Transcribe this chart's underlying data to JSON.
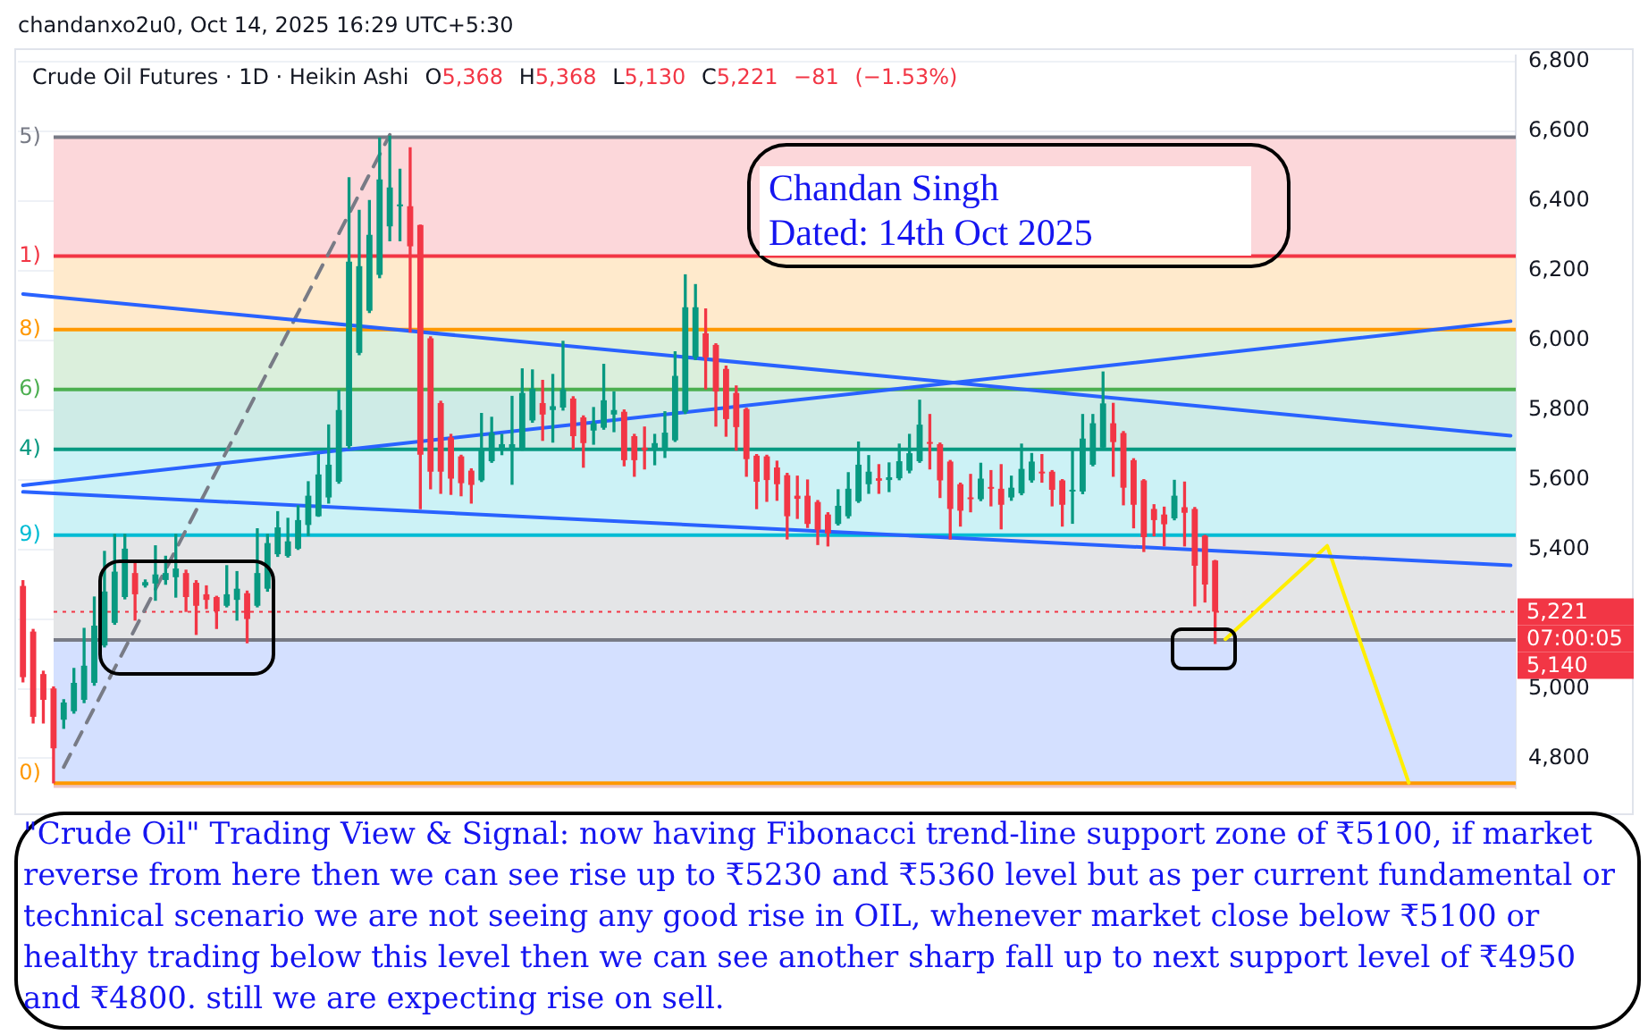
{
  "chart_data": {
    "type": "candlestick",
    "title": "Crude Oil Futures · 1D · Heikin Ashi",
    "subtitle": "O5,368 H5,368 L5,130 C5,221 −81 (−1.53%)",
    "categories": [
      null,
      null,
      null,
      null,
      null,
      null,
      null,
      null,
      null,
      null,
      null,
      null,
      null,
      null,
      null,
      null,
      null,
      null,
      null,
      null,
      null,
      null,
      null,
      null,
      null,
      null,
      null,
      null,
      null,
      null,
      null,
      null,
      null,
      null,
      null,
      null,
      null,
      null,
      null,
      null,
      null,
      null,
      null,
      null,
      null,
      null,
      null,
      null,
      null,
      null,
      null,
      null,
      null,
      null,
      null,
      null,
      null,
      null,
      null,
      null,
      null,
      null,
      null,
      null,
      null,
      null,
      null,
      null,
      null,
      null,
      null,
      null,
      null,
      null,
      null,
      null,
      null,
      null,
      null,
      null,
      null,
      null,
      null,
      null,
      null,
      null,
      null,
      null,
      null,
      null,
      null,
      null,
      null,
      null,
      null,
      null,
      null,
      null,
      null,
      null,
      null,
      null,
      null,
      null,
      null,
      null,
      null,
      null,
      null,
      null,
      null,
      null,
      null,
      null,
      null,
      null,
      null,
      null,
      null,
      null,
      null,
      null,
      null,
      null,
      null,
      null,
      null,
      null,
      null,
      null,
      null,
      null,
      null,
      null,
      null,
      null,
      null,
      null,
      null,
      null,
      null,
      null,
      null,
      null,
      null,
      null,
      null
    ],
    "ohlc": [
      [
        5295,
        5310,
        5020,
        5033
      ],
      [
        5164,
        5170,
        4902,
        4919
      ],
      [
        5042,
        5050,
        4902,
        4968
      ],
      [
        5001,
        5005,
        4730,
        4829
      ],
      [
        4911,
        4968,
        4886,
        4960
      ],
      [
        4935,
        5058,
        4930,
        5017
      ],
      [
        4968,
        5173,
        4960,
        5066
      ],
      [
        5017,
        5263,
        5010,
        5181
      ],
      [
        5124,
        5394,
        5120,
        5279
      ],
      [
        5189,
        5443,
        5185,
        5336
      ],
      [
        5263,
        5443,
        5258,
        5402
      ],
      [
        5332,
        5361,
        5197,
        5271
      ],
      [
        5296,
        5312,
        5292,
        5306
      ],
      [
        5302,
        5410,
        5254,
        5328
      ],
      [
        5312,
        5380,
        5300,
        5332
      ],
      [
        5320,
        5443,
        5263,
        5345
      ],
      [
        5332,
        5340,
        5222,
        5263
      ],
      [
        5304,
        5310,
        5156,
        5238
      ],
      [
        5271,
        5295,
        5230,
        5255
      ],
      [
        5263,
        5265,
        5173,
        5222
      ],
      [
        5238,
        5353,
        5235,
        5271
      ],
      [
        5255,
        5336,
        5197,
        5287
      ],
      [
        5274,
        5280,
        5132,
        5200
      ],
      [
        5238,
        5459,
        5235,
        5332
      ],
      [
        5287,
        5443,
        5280,
        5418
      ],
      [
        5386,
        5508,
        5380,
        5463
      ],
      [
        5381,
        5489,
        5378,
        5423
      ],
      [
        5402,
        5525,
        5400,
        5484
      ],
      [
        5470,
        5594,
        5440,
        5554
      ],
      [
        5495,
        5672,
        5495,
        5615
      ],
      [
        5549,
        5757,
        5533,
        5643
      ],
      [
        5594,
        5856,
        5590,
        5800
      ],
      [
        5697,
        6467,
        5690,
        6226
      ],
      [
        5964,
        6373,
        5959,
        6213
      ],
      [
        6085,
        6401,
        6080,
        6303
      ],
      [
        6188,
        6581,
        6180,
        6462
      ],
      [
        6327,
        6586,
        6286,
        6439
      ],
      [
        6385,
        6491,
        6286,
        6390
      ],
      [
        6385,
        6553,
        6024,
        6270
      ],
      [
        6331,
        6331,
        5517,
        5672
      ],
      [
        6006,
        6010,
        5574,
        5623
      ],
      [
        5820,
        5825,
        5561,
        5623
      ],
      [
        5721,
        5730,
        5558,
        5603
      ],
      [
        5667,
        5670,
        5554,
        5590
      ],
      [
        5626,
        5631,
        5533,
        5585
      ],
      [
        5598,
        5790,
        5595,
        5685
      ],
      [
        5653,
        5779,
        5650,
        5734
      ],
      [
        5685,
        5730,
        5672,
        5702
      ],
      [
        5689,
        5839,
        5587,
        5702
      ],
      [
        5689,
        5918,
        5685,
        5849
      ],
      [
        5770,
        5915,
        5765,
        5861
      ],
      [
        5820,
        5885,
        5713,
        5787
      ],
      [
        5800,
        5902,
        5708,
        5811
      ],
      [
        5807,
        5997,
        5800,
        5859
      ],
      [
        5833,
        5838,
        5689,
        5725
      ],
      [
        5779,
        5783,
        5636,
        5705
      ],
      [
        5741,
        5807,
        5702,
        5762
      ],
      [
        5749,
        5931,
        5745,
        5828
      ],
      [
        5787,
        5852,
        5738,
        5800
      ],
      [
        5795,
        5800,
        5640,
        5656
      ],
      [
        5725,
        5730,
        5610,
        5656
      ],
      [
        5692,
        5751,
        5631,
        5685
      ],
      [
        5685,
        5730,
        5643,
        5705
      ],
      [
        5689,
        5795,
        5664,
        5735
      ],
      [
        5713,
        5967,
        5710,
        5898
      ],
      [
        5795,
        6188,
        5790,
        6095
      ],
      [
        5951,
        6160,
        5945,
        6095
      ],
      [
        6020,
        6090,
        5861,
        5951
      ],
      [
        5987,
        5990,
        5754,
        5853
      ],
      [
        5918,
        5926,
        5725,
        5774
      ],
      [
        5849,
        5869,
        5685,
        5751
      ],
      [
        5803,
        5805,
        5610,
        5659
      ],
      [
        5669,
        5672,
        5517,
        5594
      ],
      [
        5667,
        5670,
        5538,
        5599
      ],
      [
        5635,
        5653,
        5541,
        5587
      ],
      [
        5613,
        5618,
        5430,
        5495
      ],
      [
        5554,
        5610,
        5489,
        5545
      ],
      [
        5554,
        5599,
        5463,
        5473
      ],
      [
        5536,
        5540,
        5414,
        5456
      ],
      [
        5500,
        5505,
        5410,
        5446
      ],
      [
        5473,
        5571,
        5470,
        5525
      ],
      [
        5495,
        5620,
        5490,
        5574
      ],
      [
        5538,
        5708,
        5535,
        5643
      ],
      [
        5587,
        5669,
        5561,
        5623
      ],
      [
        5604,
        5643,
        5561,
        5597
      ],
      [
        5599,
        5648,
        5566,
        5607
      ],
      [
        5604,
        5702,
        5600,
        5653
      ],
      [
        5626,
        5730,
        5620,
        5676
      ],
      [
        5653,
        5828,
        5650,
        5758
      ],
      [
        5708,
        5787,
        5631,
        5703
      ],
      [
        5702,
        5705,
        5549,
        5598
      ],
      [
        5652,
        5655,
        5430,
        5516
      ],
      [
        5587,
        5590,
        5467,
        5511
      ],
      [
        5549,
        5615,
        5508,
        5544
      ],
      [
        5544,
        5647,
        5540,
        5603
      ],
      [
        5577,
        5626,
        5525,
        5574
      ],
      [
        5574,
        5643,
        5459,
        5528
      ],
      [
        5549,
        5610,
        5541,
        5577
      ],
      [
        5561,
        5702,
        5557,
        5631
      ],
      [
        5598,
        5675,
        5593,
        5652
      ],
      [
        5623,
        5672,
        5593,
        5618
      ],
      [
        5623,
        5626,
        5525,
        5571
      ],
      [
        5598,
        5600,
        5467,
        5528
      ],
      [
        5566,
        5685,
        5475,
        5571
      ],
      [
        5566,
        5787,
        5560,
        5718
      ],
      [
        5643,
        5787,
        5640,
        5762
      ],
      [
        5692,
        5909,
        5690,
        5819
      ],
      [
        5762,
        5819,
        5610,
        5708
      ],
      [
        5734,
        5738,
        5528,
        5577
      ],
      [
        5656,
        5660,
        5462,
        5528
      ],
      [
        5598,
        5600,
        5394,
        5435
      ],
      [
        5516,
        5528,
        5439,
        5484
      ],
      [
        5500,
        5521,
        5410,
        5472
      ],
      [
        5489,
        5598,
        5485,
        5554
      ],
      [
        5521,
        5593,
        5410,
        5505
      ],
      [
        5516,
        5520,
        5238,
        5353
      ],
      [
        5439,
        5440,
        5249,
        5299
      ],
      [
        5368,
        5368,
        5130,
        5221
      ],
      null,
      null,
      null,
      null,
      null,
      null,
      null,
      null,
      null,
      null,
      null,
      null,
      null,
      null,
      null,
      null,
      null,
      null,
      null,
      null,
      null,
      null,
      null,
      null,
      null,
      null,
      null,
      null,
      null
    ],
    "colors": [
      "#f23645",
      "#f23645",
      "#f23645",
      "#f23645",
      "#089981",
      "#089981",
      "#089981",
      "#089981",
      "#089981",
      "#089981",
      "#089981",
      "#f23645",
      "#089981",
      "#089981",
      "#089981",
      "#089981",
      "#f23645",
      "#f23645",
      "#f23645",
      "#f23645",
      "#089981",
      "#089981",
      "#f23645",
      "#089981",
      "#089981",
      "#089981",
      "#089981",
      "#089981",
      "#089981",
      "#089981",
      "#089981",
      "#089981",
      "#089981",
      "#089981",
      "#089981",
      "#089981",
      "#089981",
      "#089981",
      "#f23645",
      "#f23645",
      "#f23645",
      "#f23645",
      "#f23645",
      "#f23645",
      "#f23645",
      "#089981",
      "#089981",
      "#089981",
      "#089981",
      "#089981",
      "#089981",
      "#f23645",
      "#089981",
      "#089981",
      "#f23645",
      "#f23645",
      "#089981",
      "#089981",
      "#089981",
      "#f23645",
      "#f23645",
      "#f23645",
      "#089981",
      "#089981",
      "#089981",
      "#089981",
      "#089981",
      "#f23645",
      "#f23645",
      "#f23645",
      "#f23645",
      "#f23645",
      "#f23645",
      "#f23645",
      "#f23645",
      "#f23645",
      "#f23645",
      "#f23645",
      "#f23645",
      "#f23645",
      "#089981",
      "#089981",
      "#089981",
      "#089981",
      "#f23645",
      "#089981",
      "#089981",
      "#089981",
      "#089981",
      "#f23645",
      "#f23645",
      "#f23645",
      "#f23645",
      "#f23645",
      "#089981",
      "#f23645",
      "#f23645",
      "#089981",
      "#089981",
      "#089981",
      "#f23645",
      "#f23645",
      "#f23645",
      "#089981",
      "#089981",
      "#089981",
      "#089981",
      "#f23645",
      "#f23645",
      "#f23645",
      "#f23645",
      "#f23645",
      "#f23645",
      "#089981",
      "#f23645",
      "#f23645",
      "#f23645",
      "#f23645",
      null,
      null,
      null,
      null,
      null,
      null,
      null,
      null,
      null,
      null,
      null,
      null,
      null,
      null,
      null,
      null,
      null,
      null,
      null,
      null,
      null,
      null,
      null,
      null,
      null,
      null,
      null,
      null,
      null
    ],
    "series": [
      {
        "type": "line",
        "color": "#2962ff",
        "values": [
          6133,
          null,
          null,
          null,
          null,
          null,
          null,
          null,
          null,
          null,
          null,
          null,
          null,
          null,
          null,
          null,
          null,
          null,
          null,
          null,
          null,
          null,
          null,
          null,
          null,
          null,
          null,
          null,
          null,
          null,
          null,
          null,
          null,
          null,
          null,
          null,
          null,
          null,
          null,
          null,
          null,
          null,
          null,
          null,
          null,
          null,
          null,
          null,
          null,
          null,
          null,
          null,
          null,
          null,
          null,
          null,
          null,
          null,
          null,
          null,
          null,
          null,
          null,
          null,
          null,
          null,
          null,
          null,
          null,
          null,
          null,
          null,
          null,
          null,
          null,
          null,
          null,
          null,
          null,
          null,
          null,
          null,
          null,
          null,
          null,
          null,
          null,
          null,
          null,
          null,
          null,
          null,
          null,
          null,
          null,
          null,
          null,
          null,
          null,
          null,
          null,
          null,
          null,
          null,
          null,
          null,
          null,
          null,
          null,
          null,
          null,
          null,
          null,
          null,
          null,
          null,
          null,
          null,
          null,
          null,
          null,
          null,
          null,
          null,
          null,
          null,
          null,
          null,
          null,
          null,
          null,
          null,
          null,
          null,
          null,
          null,
          null,
          null,
          null,
          null,
          null,
          null,
          null,
          null,
          null,
          null,
          5726
        ]
      },
      {
        "type": "line",
        "color": "#2962ff",
        "values": [
          5584,
          null,
          null,
          null,
          null,
          null,
          null,
          null,
          null,
          null,
          null,
          null,
          null,
          null,
          null,
          null,
          null,
          null,
          null,
          null,
          null,
          null,
          null,
          null,
          null,
          null,
          null,
          null,
          null,
          null,
          null,
          null,
          null,
          null,
          null,
          null,
          null,
          null,
          null,
          null,
          null,
          null,
          null,
          null,
          null,
          null,
          null,
          null,
          null,
          null,
          null,
          null,
          null,
          null,
          null,
          null,
          null,
          null,
          null,
          null,
          null,
          null,
          null,
          null,
          null,
          null,
          null,
          null,
          null,
          null,
          null,
          null,
          null,
          null,
          null,
          null,
          null,
          null,
          null,
          null,
          null,
          null,
          null,
          null,
          null,
          null,
          null,
          null,
          null,
          null,
          null,
          null,
          null,
          null,
          null,
          null,
          null,
          null,
          null,
          null,
          null,
          null,
          null,
          null,
          null,
          null,
          null,
          null,
          null,
          null,
          null,
          null,
          null,
          null,
          null,
          null,
          null,
          null,
          null,
          null,
          null,
          null,
          null,
          null,
          null,
          null,
          null,
          null,
          null,
          null,
          null,
          null,
          null,
          null,
          null,
          null,
          null,
          null,
          null,
          null,
          null,
          null,
          null,
          null,
          null,
          null,
          6055
        ]
      },
      {
        "type": "line",
        "color": "#2962ff",
        "values": [
          5565,
          null,
          null,
          null,
          null,
          null,
          null,
          null,
          null,
          null,
          null,
          null,
          null,
          null,
          null,
          null,
          null,
          null,
          null,
          null,
          null,
          null,
          null,
          null,
          null,
          null,
          null,
          null,
          null,
          null,
          null,
          null,
          null,
          null,
          null,
          null,
          null,
          null,
          null,
          null,
          null,
          null,
          null,
          null,
          null,
          null,
          null,
          null,
          null,
          null,
          null,
          null,
          null,
          null,
          null,
          null,
          null,
          null,
          null,
          null,
          null,
          null,
          null,
          null,
          null,
          null,
          null,
          null,
          null,
          null,
          null,
          null,
          null,
          null,
          null,
          null,
          null,
          null,
          null,
          null,
          null,
          null,
          null,
          null,
          null,
          null,
          null,
          null,
          null,
          null,
          null,
          null,
          null,
          null,
          null,
          null,
          null,
          null,
          null,
          null,
          null,
          null,
          null,
          null,
          null,
          null,
          null,
          null,
          null,
          null,
          null,
          null,
          null,
          null,
          null,
          null,
          null,
          null,
          null,
          null,
          null,
          null,
          null,
          null,
          null,
          null,
          null,
          null,
          null,
          null,
          null,
          null,
          null,
          null,
          null,
          null,
          null,
          null,
          null,
          null,
          null,
          null,
          null,
          null,
          null,
          null,
          5354
        ]
      },
      {
        "type": "line",
        "color": "#787b86",
        "line_style": "dashed",
        "values": [
          null,
          null,
          null,
          null,
          4775,
          null,
          null,
          null,
          null,
          null,
          null,
          null,
          null,
          null,
          null,
          null,
          null,
          null,
          null,
          null,
          null,
          null,
          null,
          null,
          null,
          null,
          null,
          null,
          null,
          null,
          null,
          null,
          null,
          null,
          null,
          null,
          6590,
          null,
          null,
          null,
          null,
          null,
          null,
          null,
          null,
          null,
          null,
          null,
          null,
          null,
          null,
          null,
          null,
          null,
          null,
          null,
          null,
          null,
          null,
          null,
          null,
          null,
          null,
          null,
          null,
          null,
          null,
          null,
          null,
          null,
          null,
          null,
          null,
          null,
          null,
          null,
          null,
          null,
          null,
          null,
          null,
          null,
          null,
          null,
          null,
          null,
          null,
          null,
          null,
          null,
          null,
          null,
          null,
          null,
          null,
          null,
          null,
          null,
          null,
          null,
          null,
          null,
          null,
          null,
          null,
          null,
          null,
          null,
          null,
          null,
          null,
          null,
          null,
          null,
          null,
          null,
          null,
          null,
          null,
          null,
          null,
          null,
          null,
          null,
          null,
          null,
          null,
          null,
          null,
          null,
          null,
          null,
          null,
          null,
          null,
          null,
          null,
          null,
          null,
          null,
          null,
          null,
          null,
          null,
          null,
          null,
          null
        ]
      },
      {
        "type": "line",
        "color": "#ffee00",
        "values": [
          null,
          null,
          null,
          null,
          null,
          null,
          null,
          null,
          null,
          null,
          null,
          null,
          null,
          null,
          null,
          null,
          null,
          null,
          null,
          null,
          null,
          null,
          null,
          null,
          null,
          null,
          null,
          null,
          null,
          null,
          null,
          null,
          null,
          null,
          null,
          null,
          null,
          null,
          null,
          null,
          null,
          null,
          null,
          null,
          null,
          null,
          null,
          null,
          null,
          null,
          null,
          null,
          null,
          null,
          null,
          null,
          null,
          null,
          null,
          null,
          null,
          null,
          null,
          null,
          null,
          null,
          null,
          null,
          null,
          null,
          null,
          null,
          null,
          null,
          null,
          null,
          null,
          null,
          null,
          null,
          null,
          null,
          null,
          null,
          null,
          null,
          null,
          null,
          null,
          null,
          null,
          null,
          null,
          null,
          null,
          null,
          null,
          null,
          null,
          null,
          null,
          null,
          null,
          null,
          null,
          null,
          null,
          null,
          null,
          null,
          null,
          null,
          null,
          null,
          null,
          null,
          null,
          null,
          5142,
          null,
          null,
          null,
          null,
          null,
          null,
          null,
          null,
          null,
          5410,
          null,
          null,
          null,
          null,
          null,
          null,
          null,
          4730,
          null,
          null,
          null,
          null,
          null,
          null,
          null,
          null,
          null,
          null
        ]
      }
    ],
    "bands": [
      {
        "axis": "y",
        "from": 6242,
        "to": 6583,
        "label": "5)",
        "color": "#fcd7da"
      },
      {
        "axis": "y",
        "from": 6031,
        "to": 6242,
        "label": "1)",
        "color": "#ffeacc"
      },
      {
        "axis": "y",
        "from": 5859,
        "to": 6031,
        "label": "8)",
        "color": "#dbefdc"
      },
      {
        "axis": "y",
        "from": 5687,
        "to": 5859,
        "label": "6)",
        "color": "#ceebe6"
      },
      {
        "axis": "y",
        "from": 5441,
        "to": 5687,
        "label": "4)",
        "color": "#ccf2f6"
      },
      {
        "axis": "y",
        "from": 5140,
        "to": 5441,
        "label": "9)",
        "color": "#e4e5e7"
      },
      {
        "axis": "y",
        "from": 4729,
        "to": 5140,
        "color": "#d4e0ff"
      },
      {
        "axis": "y",
        "from": 4715,
        "to": 4729,
        "label": "0)",
        "color": "#ebc3c5"
      }
    ],
    "ref_lines": [
      {
        "axis": "y",
        "value": 6583,
        "color": "#787b86"
      },
      {
        "axis": "y",
        "value": 6242,
        "color": "#f23645"
      },
      {
        "axis": "y",
        "value": 6031,
        "color": "#ff9800"
      },
      {
        "axis": "y",
        "value": 5859,
        "color": "#4caf50"
      },
      {
        "axis": "y",
        "value": 5687,
        "color": "#089981"
      },
      {
        "axis": "y",
        "value": 5441,
        "color": "#00bcd4"
      },
      {
        "axis": "y",
        "value": 4729,
        "color": "#ff9800"
      },
      {
        "axis": "y",
        "value": 5221,
        "label": "5,221",
        "color": "#f23645",
        "line_style": "dotted"
      },
      {
        "axis": "y",
        "value": 5140,
        "label": "5,140",
        "color": "#787b86"
      }
    ],
    "annotations": [
      "chandanxo2u0, Oct 14, 2025 16:29 UTC+5:30",
      "Chandan Singh",
      "Dated: 14th Oct 2025",
      "07:00:05",
      "\"Crude Oil\" Trading View & Signal: now having Fibonacci trend-line support zone of ₹5100, if market reverse from here then we can see rise up to ₹5230 and ₹5360 level but as per current fundamental or technical scenario we are not seeing any good rise in OIL, whenever market close below ₹5100 or healthy trading below this level then we can see another sharp fall up to next support level of ₹4950 and ₹4800. still we are expecting rise on sell."
    ],
    "ylim": [
      4715,
      6817
    ],
    "yticks": [
      {
        "value": 4800,
        "label": "4,800"
      },
      {
        "value": 5000,
        "label": "5,000"
      },
      {
        "value": 5200,
        "label": null
      },
      {
        "value": 5400,
        "label": "5,400"
      },
      {
        "value": 5600,
        "label": "5,600"
      },
      {
        "value": 5800,
        "label": "5,800"
      },
      {
        "value": 6000,
        "label": "6,000"
      },
      {
        "value": 6200,
        "label": "6,200"
      },
      {
        "value": 6400,
        "label": "6,400"
      },
      {
        "value": 6600,
        "label": "6,600"
      },
      {
        "value": 6800,
        "label": "6,800"
      }
    ],
    "grid": "y",
    "tick_labels": "y"
  }
}
